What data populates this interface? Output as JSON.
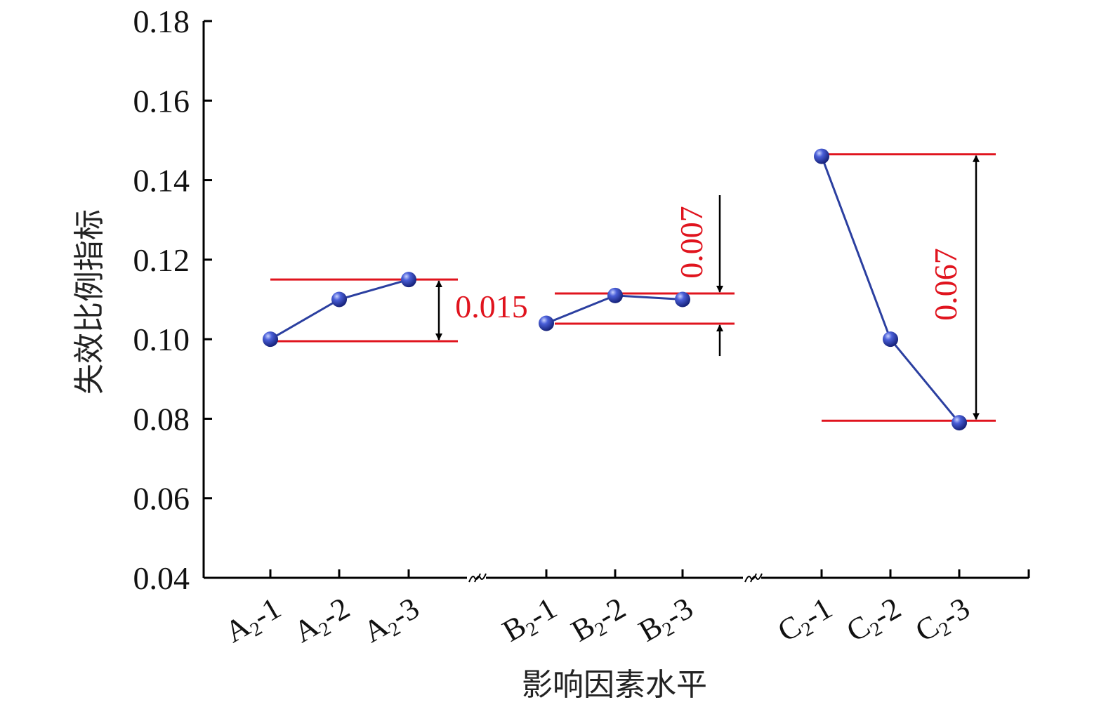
{
  "chart_data": {
    "type": "line",
    "xlabel": "影响因素水平",
    "ylabel": "失效比例指标",
    "ylim": [
      0.04,
      0.18
    ],
    "yticks": [
      "0.04",
      "0.06",
      "0.08",
      "0.10",
      "0.12",
      "0.14",
      "0.16",
      "0.18"
    ],
    "groups": [
      {
        "categories": [
          {
            "base": "A",
            "sub": "2",
            "suffix": "-1"
          },
          {
            "base": "A",
            "sub": "2",
            "suffix": "-2"
          },
          {
            "base": "A",
            "sub": "2",
            "suffix": "-3"
          }
        ],
        "values": [
          0.1,
          0.11,
          0.115
        ],
        "range": {
          "label": "0.015",
          "low": 0.0995,
          "high": 0.115
        }
      },
      {
        "categories": [
          {
            "base": "B",
            "sub": "2",
            "suffix": "-1"
          },
          {
            "base": "B",
            "sub": "2",
            "suffix": "-2"
          },
          {
            "base": "B",
            "sub": "2",
            "suffix": "-3"
          }
        ],
        "values": [
          0.104,
          0.111,
          0.11
        ],
        "range": {
          "label": "0.007",
          "low": 0.1039,
          "high": 0.1115
        }
      },
      {
        "categories": [
          {
            "base": "C",
            "sub": "2",
            "suffix": "-1"
          },
          {
            "base": "C",
            "sub": "2",
            "suffix": "-2"
          },
          {
            "base": "C",
            "sub": "2",
            "suffix": "-3"
          }
        ],
        "values": [
          0.146,
          0.1,
          0.079
        ],
        "range": {
          "label": "0.067",
          "low": 0.0795,
          "high": 0.1465
        }
      }
    ],
    "colors": {
      "series": "#2b3fa0",
      "marker": "#2a3fb0",
      "range": "#e0141e",
      "axis": "#000000"
    }
  }
}
